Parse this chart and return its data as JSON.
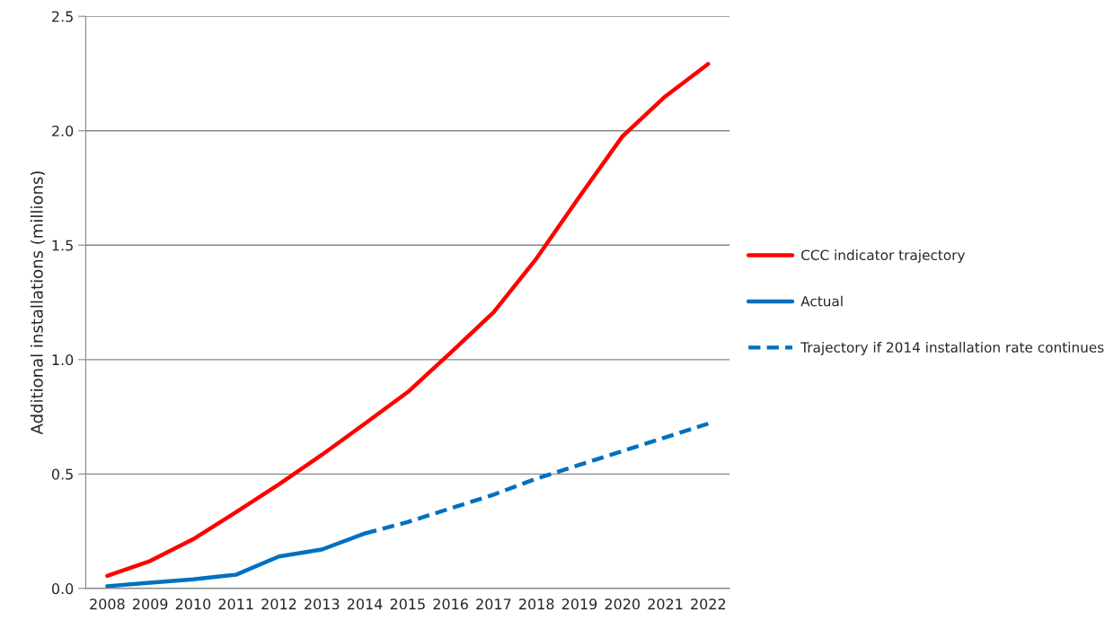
{
  "chart_data": {
    "type": "line",
    "ylabel": "Additional installations (millions)",
    "categories": [
      "2008",
      "2009",
      "2010",
      "2011",
      "2012",
      "2013",
      "2014",
      "2015",
      "2016",
      "2017",
      "2018",
      "2019",
      "2020",
      "2021",
      "2022"
    ],
    "series": [
      {
        "name": "CCC indicator trajectory",
        "color": "#ff0000",
        "line_style": "solid",
        "values": [
          0.055,
          0.12,
          0.215,
          0.333,
          0.455,
          0.584,
          0.72,
          0.858,
          1.03,
          1.207,
          1.442,
          1.712,
          1.975,
          2.15,
          2.292
        ]
      },
      {
        "name": "Actual",
        "color": "#0070c0",
        "line_style": "solid",
        "values": [
          0.01,
          0.025,
          0.04,
          0.06,
          0.14,
          0.17,
          0.24,
          null,
          null,
          null,
          null,
          null,
          null,
          null,
          null
        ]
      },
      {
        "name": "Trajectory if 2014 installation rate continues",
        "color": "#0070c0",
        "line_style": "dashed",
        "values": [
          null,
          null,
          null,
          null,
          null,
          null,
          0.24,
          0.29,
          0.35,
          0.41,
          0.48,
          0.54,
          0.6,
          0.66,
          0.72
        ]
      }
    ],
    "ylim": [
      0,
      2.5
    ],
    "yticks": [
      {
        "value": 0,
        "label": "0.0"
      },
      {
        "value": 0.5,
        "label": "0.5"
      },
      {
        "value": 1,
        "label": "1.0"
      },
      {
        "value": 1.5,
        "label": "1.5"
      },
      {
        "value": 2,
        "label": "2.0"
      },
      {
        "value": 2.5,
        "label": "2.5"
      }
    ],
    "grid": "y",
    "legend": "right",
    "marker": "none"
  }
}
